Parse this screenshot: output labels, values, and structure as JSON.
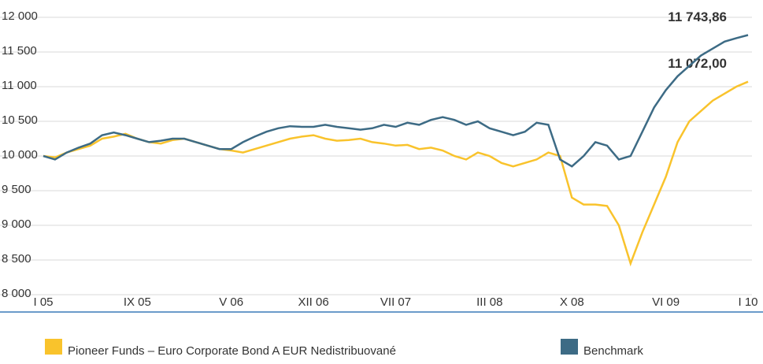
{
  "chart_data": {
    "type": "line",
    "x": [
      "2005-01",
      "2005-02",
      "2005-03",
      "2005-04",
      "2005-05",
      "2005-06",
      "2005-07",
      "2005-08",
      "2005-09",
      "2005-10",
      "2005-11",
      "2005-12",
      "2006-01",
      "2006-02",
      "2006-03",
      "2006-04",
      "2006-05",
      "2006-06",
      "2006-07",
      "2006-08",
      "2006-09",
      "2006-10",
      "2006-11",
      "2006-12",
      "2007-01",
      "2007-02",
      "2007-03",
      "2007-04",
      "2007-05",
      "2007-06",
      "2007-07",
      "2007-08",
      "2007-09",
      "2007-10",
      "2007-11",
      "2007-12",
      "2008-01",
      "2008-02",
      "2008-03",
      "2008-04",
      "2008-05",
      "2008-06",
      "2008-07",
      "2008-08",
      "2008-09",
      "2008-10",
      "2008-11",
      "2008-12",
      "2009-01",
      "2009-02",
      "2009-03",
      "2009-04",
      "2009-05",
      "2009-06",
      "2009-07",
      "2009-08",
      "2009-09",
      "2009-10",
      "2009-11",
      "2009-12",
      "2010-01"
    ],
    "series": [
      {
        "name": "Pioneer Funds – Euro Corporate Bond  A EUR Nedistribuované",
        "color": "#f9c32c",
        "end_label": "11 072,00",
        "values": [
          10000,
          9980,
          10050,
          10100,
          10150,
          10250,
          10280,
          10320,
          10250,
          10200,
          10180,
          10230,
          10250,
          10200,
          10150,
          10100,
          10080,
          10050,
          10100,
          10150,
          10200,
          10250,
          10280,
          10300,
          10250,
          10220,
          10230,
          10250,
          10200,
          10180,
          10150,
          10160,
          10100,
          10120,
          10080,
          10000,
          9950,
          10050,
          10000,
          9900,
          9850,
          9900,
          9950,
          10050,
          10000,
          9400,
          9300,
          9300,
          9280,
          9000,
          8450,
          8900,
          9300,
          9700,
          10200,
          10500,
          10650,
          10800,
          10900,
          11000,
          11072.0
        ]
      },
      {
        "name": "Benchmark",
        "color": "#3d6b85",
        "end_label": "11 743,86",
        "values": [
          10000,
          9950,
          10050,
          10120,
          10180,
          10300,
          10340,
          10300,
          10250,
          10200,
          10220,
          10250,
          10250,
          10200,
          10150,
          10100,
          10100,
          10200,
          10280,
          10350,
          10400,
          10430,
          10420,
          10420,
          10450,
          10420,
          10400,
          10380,
          10400,
          10450,
          10420,
          10480,
          10450,
          10520,
          10560,
          10520,
          10450,
          10500,
          10400,
          10350,
          10300,
          10350,
          10480,
          10450,
          9950,
          9850,
          10000,
          10200,
          10150,
          9950,
          10000,
          10350,
          10700,
          10950,
          11150,
          11300,
          11450,
          11550,
          11650,
          11700,
          11743.86
        ]
      }
    ],
    "xlim": [
      "2005-01",
      "2010-01"
    ],
    "xticks": [
      {
        "value": "2005-01",
        "label": "I 05"
      },
      {
        "value": "2005-09",
        "label": "IX 05"
      },
      {
        "value": "2006-05",
        "label": "V 06"
      },
      {
        "value": "2006-12",
        "label": "XII 06"
      },
      {
        "value": "2007-07",
        "label": "VII 07"
      },
      {
        "value": "2008-03",
        "label": "III 08"
      },
      {
        "value": "2008-10",
        "label": "X 08"
      },
      {
        "value": "2009-06",
        "label": "VI 09"
      },
      {
        "value": "2010-01",
        "label": "I 10"
      }
    ],
    "ylim": [
      7750,
      12250
    ],
    "yticks": [
      {
        "value": 8000,
        "label": "8 000"
      },
      {
        "value": 8500,
        "label": "8 500"
      },
      {
        "value": 9000,
        "label": "9 000"
      },
      {
        "value": 9500,
        "label": "9 500"
      },
      {
        "value": 10000,
        "label": "10 000"
      },
      {
        "value": 10500,
        "label": "10 500"
      },
      {
        "value": 11000,
        "label": "11 000"
      },
      {
        "value": 11500,
        "label": "11 500"
      },
      {
        "value": 12000,
        "label": "12 000"
      }
    ],
    "grid": true
  }
}
